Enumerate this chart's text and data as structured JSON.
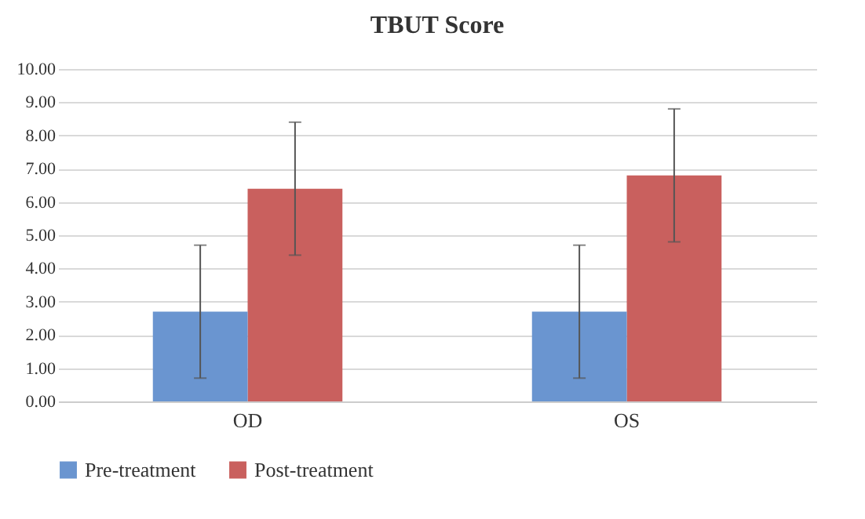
{
  "chart_data": {
    "type": "bar",
    "title": "TBUT Score",
    "categories": [
      "OD",
      "OS"
    ],
    "series": [
      {
        "name": "Pre-treatment",
        "color": "#6a95d0",
        "values": [
          2.7,
          2.7
        ],
        "errors": [
          2,
          2
        ]
      },
      {
        "name": "Post-treatment",
        "color": "#c9605e",
        "values": [
          6.4,
          6.8
        ],
        "errors": [
          2,
          2
        ]
      }
    ],
    "ylim": [
      0,
      10
    ],
    "yticks": [
      {
        "value": 0,
        "label": "0.00"
      },
      {
        "value": 1,
        "label": "1.00"
      },
      {
        "value": 2,
        "label": "2.00"
      },
      {
        "value": 3,
        "label": "3.00"
      },
      {
        "value": 4,
        "label": "4.00"
      },
      {
        "value": 5,
        "label": "5.00"
      },
      {
        "value": 6,
        "label": "6.00"
      },
      {
        "value": 7,
        "label": "7.00"
      },
      {
        "value": 8,
        "label": "8.00"
      },
      {
        "value": 9,
        "label": "9.00"
      },
      {
        "value": 10,
        "label": "10.00"
      }
    ],
    "grid": "y",
    "legend": "bottom"
  }
}
